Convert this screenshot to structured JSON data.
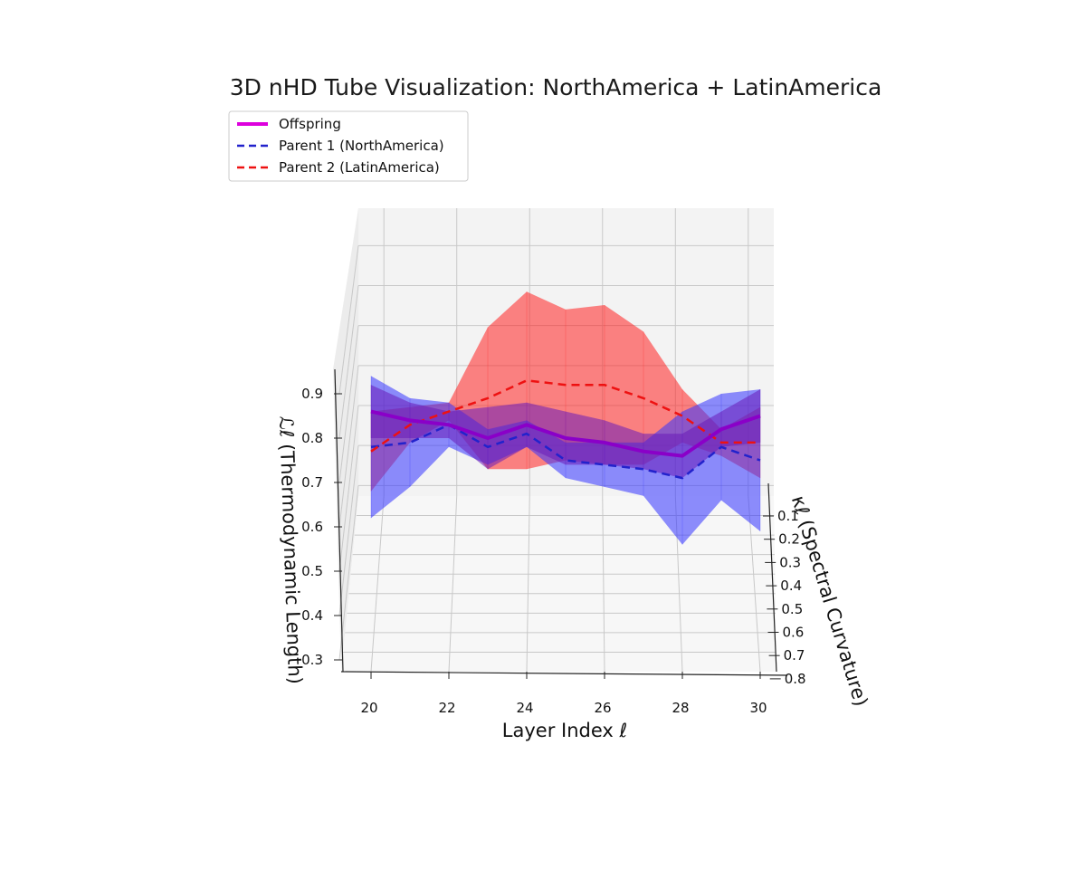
{
  "chart_data": {
    "type": "line",
    "projection": "3d",
    "title": "3D nHD Tube Visualization: NorthAmerica + LatinAmerica",
    "xlabel": "Layer Index ℓ",
    "ylabel": "κℓ (Spectral Curvature)",
    "zlabel": "ℒℓ (Thermodynamic Length)",
    "xlim": [
      19.3,
      30.7
    ],
    "zlim": [
      0.26,
      0.98
    ],
    "x_ticks": [
      "20",
      "22",
      "24",
      "26",
      "28",
      "30"
    ],
    "y_ticks": [
      "0.1",
      "0.2",
      "0.3",
      "0.4",
      "0.5",
      "0.6",
      "0.7",
      "0.8"
    ],
    "z_ticks": [
      "0.3",
      "0.4",
      "0.5",
      "0.6",
      "0.7",
      "0.8",
      "0.9"
    ],
    "x": [
      20,
      21,
      22,
      23,
      24,
      25,
      26,
      27,
      28,
      29,
      30
    ],
    "grid": true,
    "legend_position": "top-left",
    "series": [
      {
        "name": "Offspring",
        "color": "#cc00cc",
        "style": "solid",
        "values": [
          0.86,
          0.84,
          0.83,
          0.8,
          0.83,
          0.8,
          0.79,
          0.77,
          0.76,
          0.82,
          0.85
        ],
        "tube_radius": [
          0.06,
          0.04,
          0.03,
          0.07,
          0.05,
          0.06,
          0.05,
          0.04,
          0.05,
          0.04,
          0.06
        ],
        "tube_color": "#6a1cb8"
      },
      {
        "name": "Parent 1 (NorthAmerica)",
        "color": "#2222cc",
        "style": "dashed",
        "values": [
          0.78,
          0.79,
          0.83,
          0.78,
          0.81,
          0.75,
          0.74,
          0.73,
          0.71,
          0.78,
          0.75
        ],
        "tube_radius": [
          0.16,
          0.1,
          0.05,
          0.04,
          0.03,
          0.04,
          0.05,
          0.06,
          0.15,
          0.12,
          0.16
        ],
        "tube_color": "#3333ff"
      },
      {
        "name": "Parent 2 (LatinAmerica)",
        "color": "#ee1111",
        "style": "dashed",
        "values": [
          0.77,
          0.83,
          0.86,
          0.89,
          0.93,
          0.92,
          0.92,
          0.89,
          0.85,
          0.79,
          0.79
        ],
        "tube_radius": [
          0.09,
          0.04,
          0.02,
          0.16,
          0.2,
          0.17,
          0.18,
          0.15,
          0.06,
          0.03,
          0.08
        ],
        "tube_color": "#ff2020"
      }
    ]
  }
}
